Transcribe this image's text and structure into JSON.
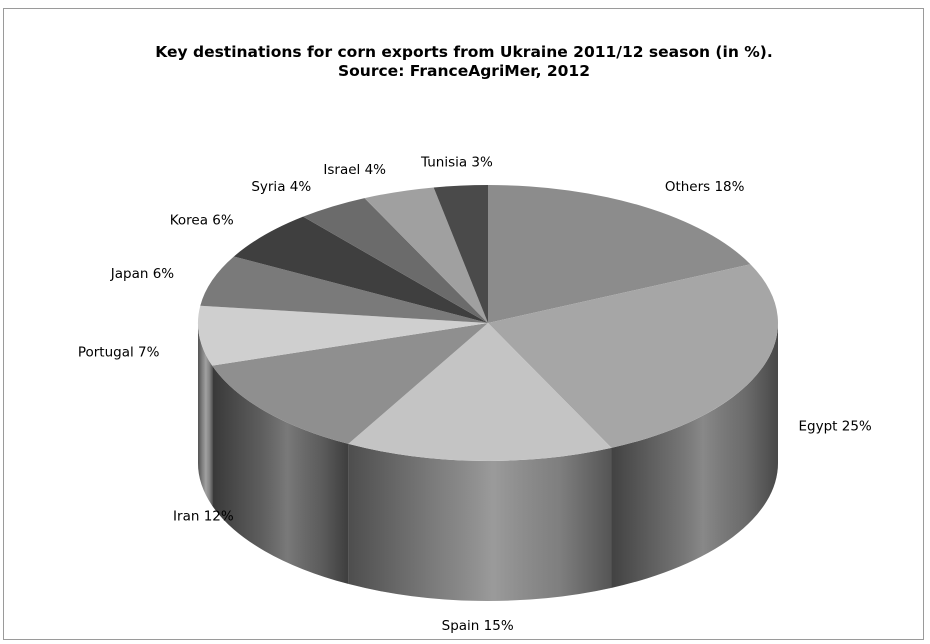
{
  "chart_data": {
    "type": "pie",
    "title_lines": [
      "Key destinations for corn exports from Ukraine 2011/12 season (in %).",
      "Source: FranceAgriMer, 2012"
    ],
    "slices": [
      {
        "name": "Others",
        "value": 18,
        "label": "Others 18%",
        "color": "#8c8c8c"
      },
      {
        "name": "Egypt",
        "value": 25,
        "label": "Egypt 25%",
        "color": "#a6a6a6"
      },
      {
        "name": "Spain",
        "value": 15,
        "label": "Spain 15%",
        "color": "#c4c4c4"
      },
      {
        "name": "Iran",
        "value": 12,
        "label": "Iran 12%",
        "color": "#8f8f8f"
      },
      {
        "name": "Portugal",
        "value": 7,
        "label": "Portugal 7%",
        "color": "#cfcfcf"
      },
      {
        "name": "Japan",
        "value": 6,
        "label": "Japan 6%",
        "color": "#7a7a7a"
      },
      {
        "name": "Korea",
        "value": 6,
        "label": "Korea 6%",
        "color": "#3f3f3f"
      },
      {
        "name": "Syria",
        "value": 4,
        "label": "Syria 4%",
        "color": "#6b6b6b"
      },
      {
        "name": "Israel",
        "value": 4,
        "label": "Israel 4%",
        "color": "#a0a0a0"
      },
      {
        "name": "Tunisia",
        "value": 3,
        "label": "Tunisia 3%",
        "color": "#4a4a4a"
      }
    ],
    "legend": "none",
    "style": "3d"
  }
}
